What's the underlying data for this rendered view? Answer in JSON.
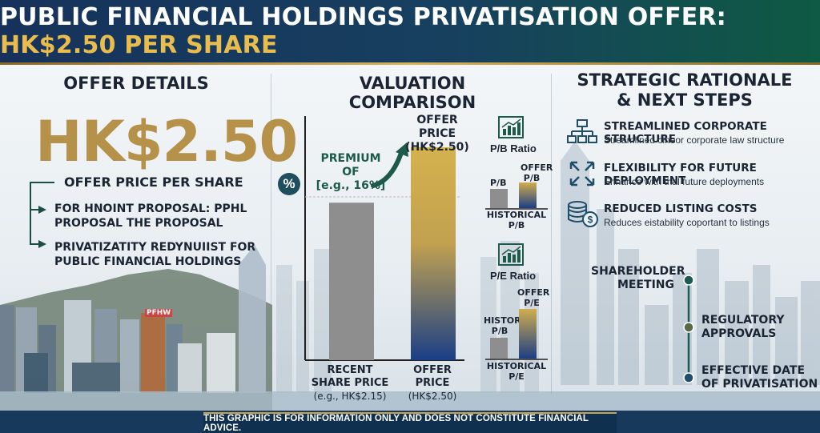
{
  "header": {
    "title_prefix": "PUBLIC FINANCIAL HOLDINGS PRIVATISATION OFFER: ",
    "title_accent": "HK$2.50 PER SHARE"
  },
  "offer_details": {
    "title": "OFFER DETAILS",
    "price": "HK$2.50",
    "price_label": "OFFER PRICE PER SHARE",
    "bullets": [
      {
        "line1": "FOR HNOINT PROPOSAL: PPHL",
        "line2": "PROPOSAL THE PROPOSAL"
      },
      {
        "line1": "PRIVATIZATITY REDYNUIIST FOR",
        "line2": "PUBLIC FINANCIAL HOLDINGS"
      }
    ],
    "building_sign": "PFHW"
  },
  "valuation": {
    "title": "VALUATION COMPARISON",
    "percent_icon": "%",
    "premium_line1": "PREMIUM OF",
    "premium_line2": "[e.g., 16%]",
    "offer_top_line1": "OFFER PRICE",
    "offer_top_line2": "(HK$2.50)",
    "bar_recent_label": [
      "RECENT",
      "SHARE PRICE",
      "(e.g., HK$2.15)"
    ],
    "bar_offer_label": [
      "OFFER",
      "PRICE",
      "(HK$2.50)"
    ],
    "pb": {
      "icon": "chart-icon",
      "title": "P/B Ratio",
      "left_label": "P/B",
      "right_label": [
        "OFFER",
        "P/B"
      ],
      "base_label": [
        "HISTORICAL",
        "P/B"
      ]
    },
    "pe": {
      "icon": "chart-icon",
      "title": "P/E Ratio",
      "left_label": [
        "HISTOR",
        "P/B"
      ],
      "right_label": [
        "OFFER",
        "P/E"
      ],
      "base_label": [
        "HISTORICAL",
        "P/E"
      ]
    }
  },
  "chart_data": {
    "type": "bar",
    "categories": [
      "RECENT SHARE PRICE (e.g., HK$2.15)",
      "OFFER PRICE (HK$2.50)"
    ],
    "values": [
      2.15,
      2.5
    ]
  },
  "strategic": {
    "title_line1": "STRATEGIC RATIONALE",
    "title_line2": "& NEXT STEPS",
    "items": [
      {
        "icon": "org-chart-icon",
        "title": "STREAMLINED CORPORATE STRUCTURE",
        "desc": "Streamlined cineor corporate law structure"
      },
      {
        "icon": "expand-arrows-icon",
        "title": "FLEXIBILITY FOR FUTURE DEPLOYMENT",
        "desc": "Enhance with thal future deployments"
      },
      {
        "icon": "coins-icon",
        "title": "REDUCED LISTING COSTS",
        "desc": "Reduces eistability coportant to listings"
      }
    ],
    "timeline": [
      {
        "line1": "SHAREHOLDER",
        "line2": "MEETING"
      },
      {
        "line1": "REGULATORY",
        "line2": "APPROVALS"
      },
      {
        "line1": "EFFECTIVE DATE",
        "line2": "OF PRIVATISATION"
      }
    ]
  },
  "footer": {
    "disclaimer": "THIS GRAPHIC IS FOR INFORMATION ONLY AND DOES NOT CONSTITUTE FINANCIAL ADVICE."
  },
  "colors": {
    "navy": "#16325c",
    "gold": "#b5914a",
    "green": "#0f5a43",
    "bar_gray": "#8e8e8e"
  }
}
